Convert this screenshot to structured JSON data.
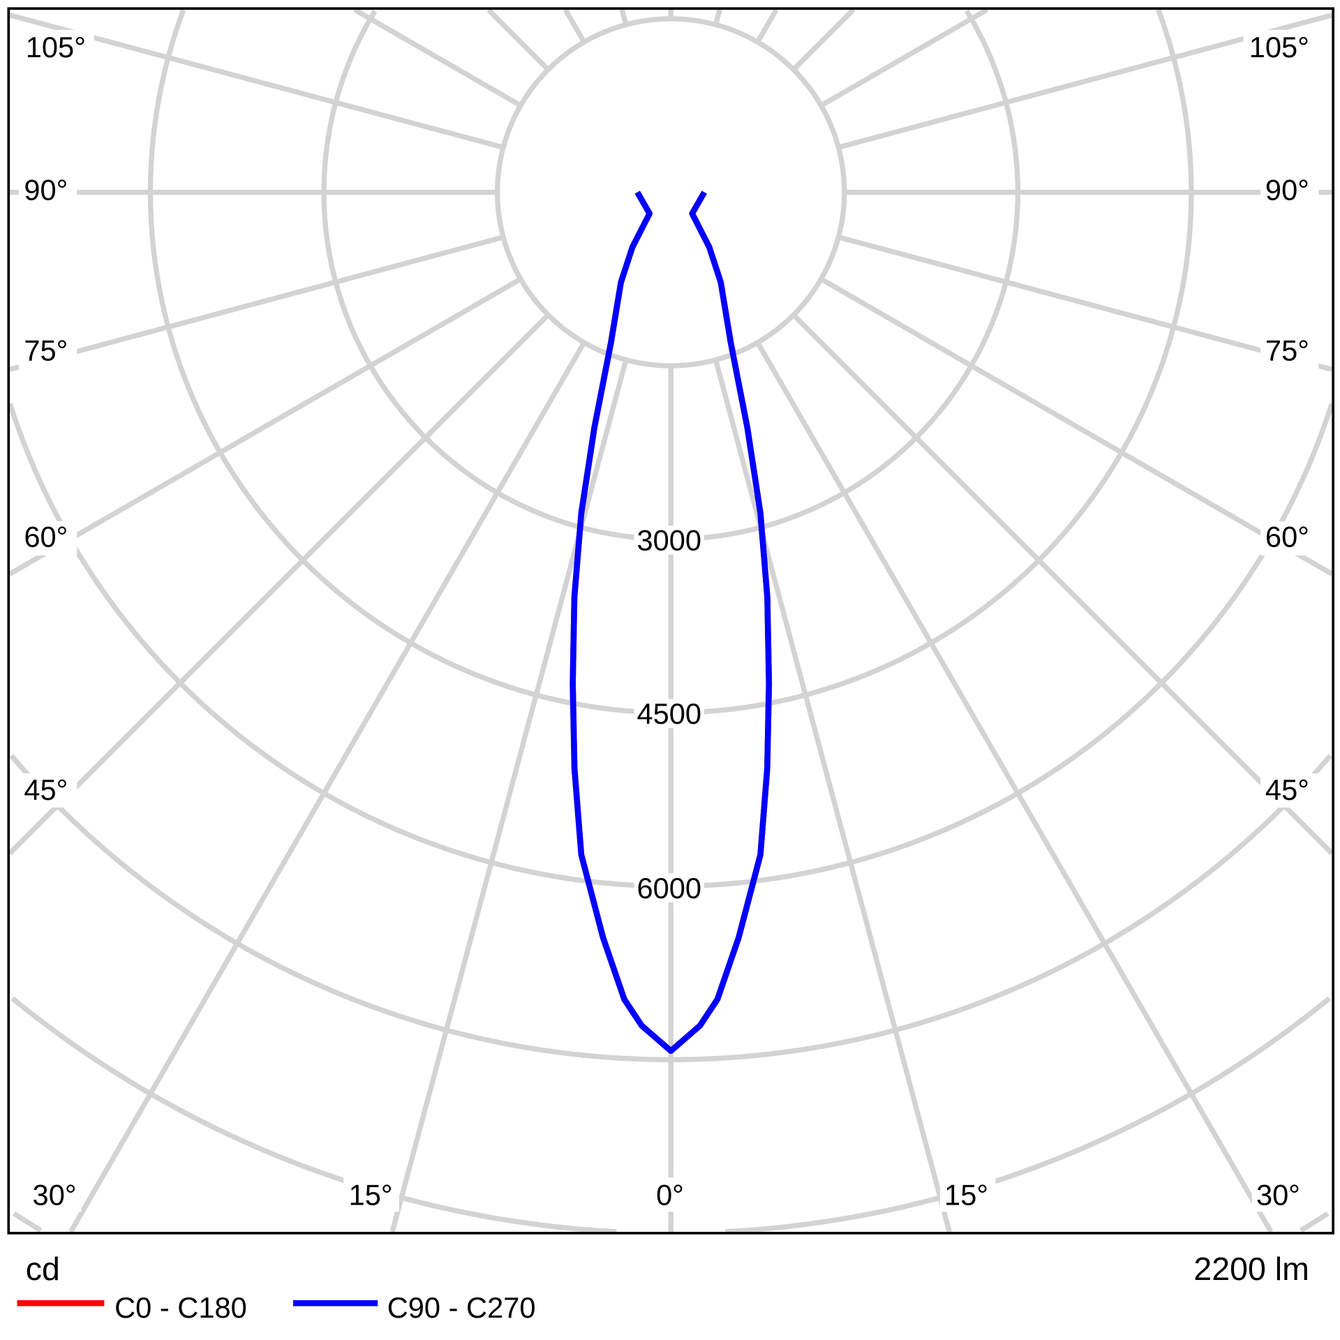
{
  "chart_data": {
    "type": "polar",
    "unit_label": "cd",
    "flux_label": "2200 lm",
    "radial_ticks": [
      1500,
      3000,
      4500,
      6000,
      7500,
      9000,
      10500
    ],
    "radial_tick_labels": [
      "3000",
      "4500",
      "6000"
    ],
    "angle_labels": {
      "left": [
        "105°",
        "90°",
        "75°",
        "60°",
        "45°"
      ],
      "right": [
        "105°",
        "90°",
        "75°",
        "60°",
        "45°"
      ],
      "bottom": [
        "30°",
        "15°",
        "0°",
        "15°",
        "30°"
      ]
    },
    "grid": true,
    "legend_placement": "bottom-left",
    "series": [
      {
        "name": "C0 - C180",
        "color": "#ff0000",
        "gamma": [
          0,
          2,
          3.3,
          5.2,
          7.7,
          9.5,
          11.3,
          13.4,
          15.6,
          18,
          21.7,
          29,
          35,
          45,
          90
        ],
        "intensity": [
          7425,
          7210,
          6990,
          6470,
          5780,
          5050,
          4330,
          3600,
          2880,
          2140,
          1400,
          890,
          580,
          260,
          290
        ]
      },
      {
        "name": "C90 - C270",
        "color": "#0000ff",
        "gamma": [
          0,
          2,
          3.3,
          5.2,
          7.7,
          9.5,
          11.3,
          13.4,
          15.6,
          18,
          21.7,
          29,
          35,
          45,
          90
        ],
        "intensity": [
          7425,
          7210,
          6990,
          6470,
          5780,
          5050,
          4330,
          3600,
          2880,
          2140,
          1400,
          890,
          580,
          260,
          290
        ]
      }
    ]
  }
}
